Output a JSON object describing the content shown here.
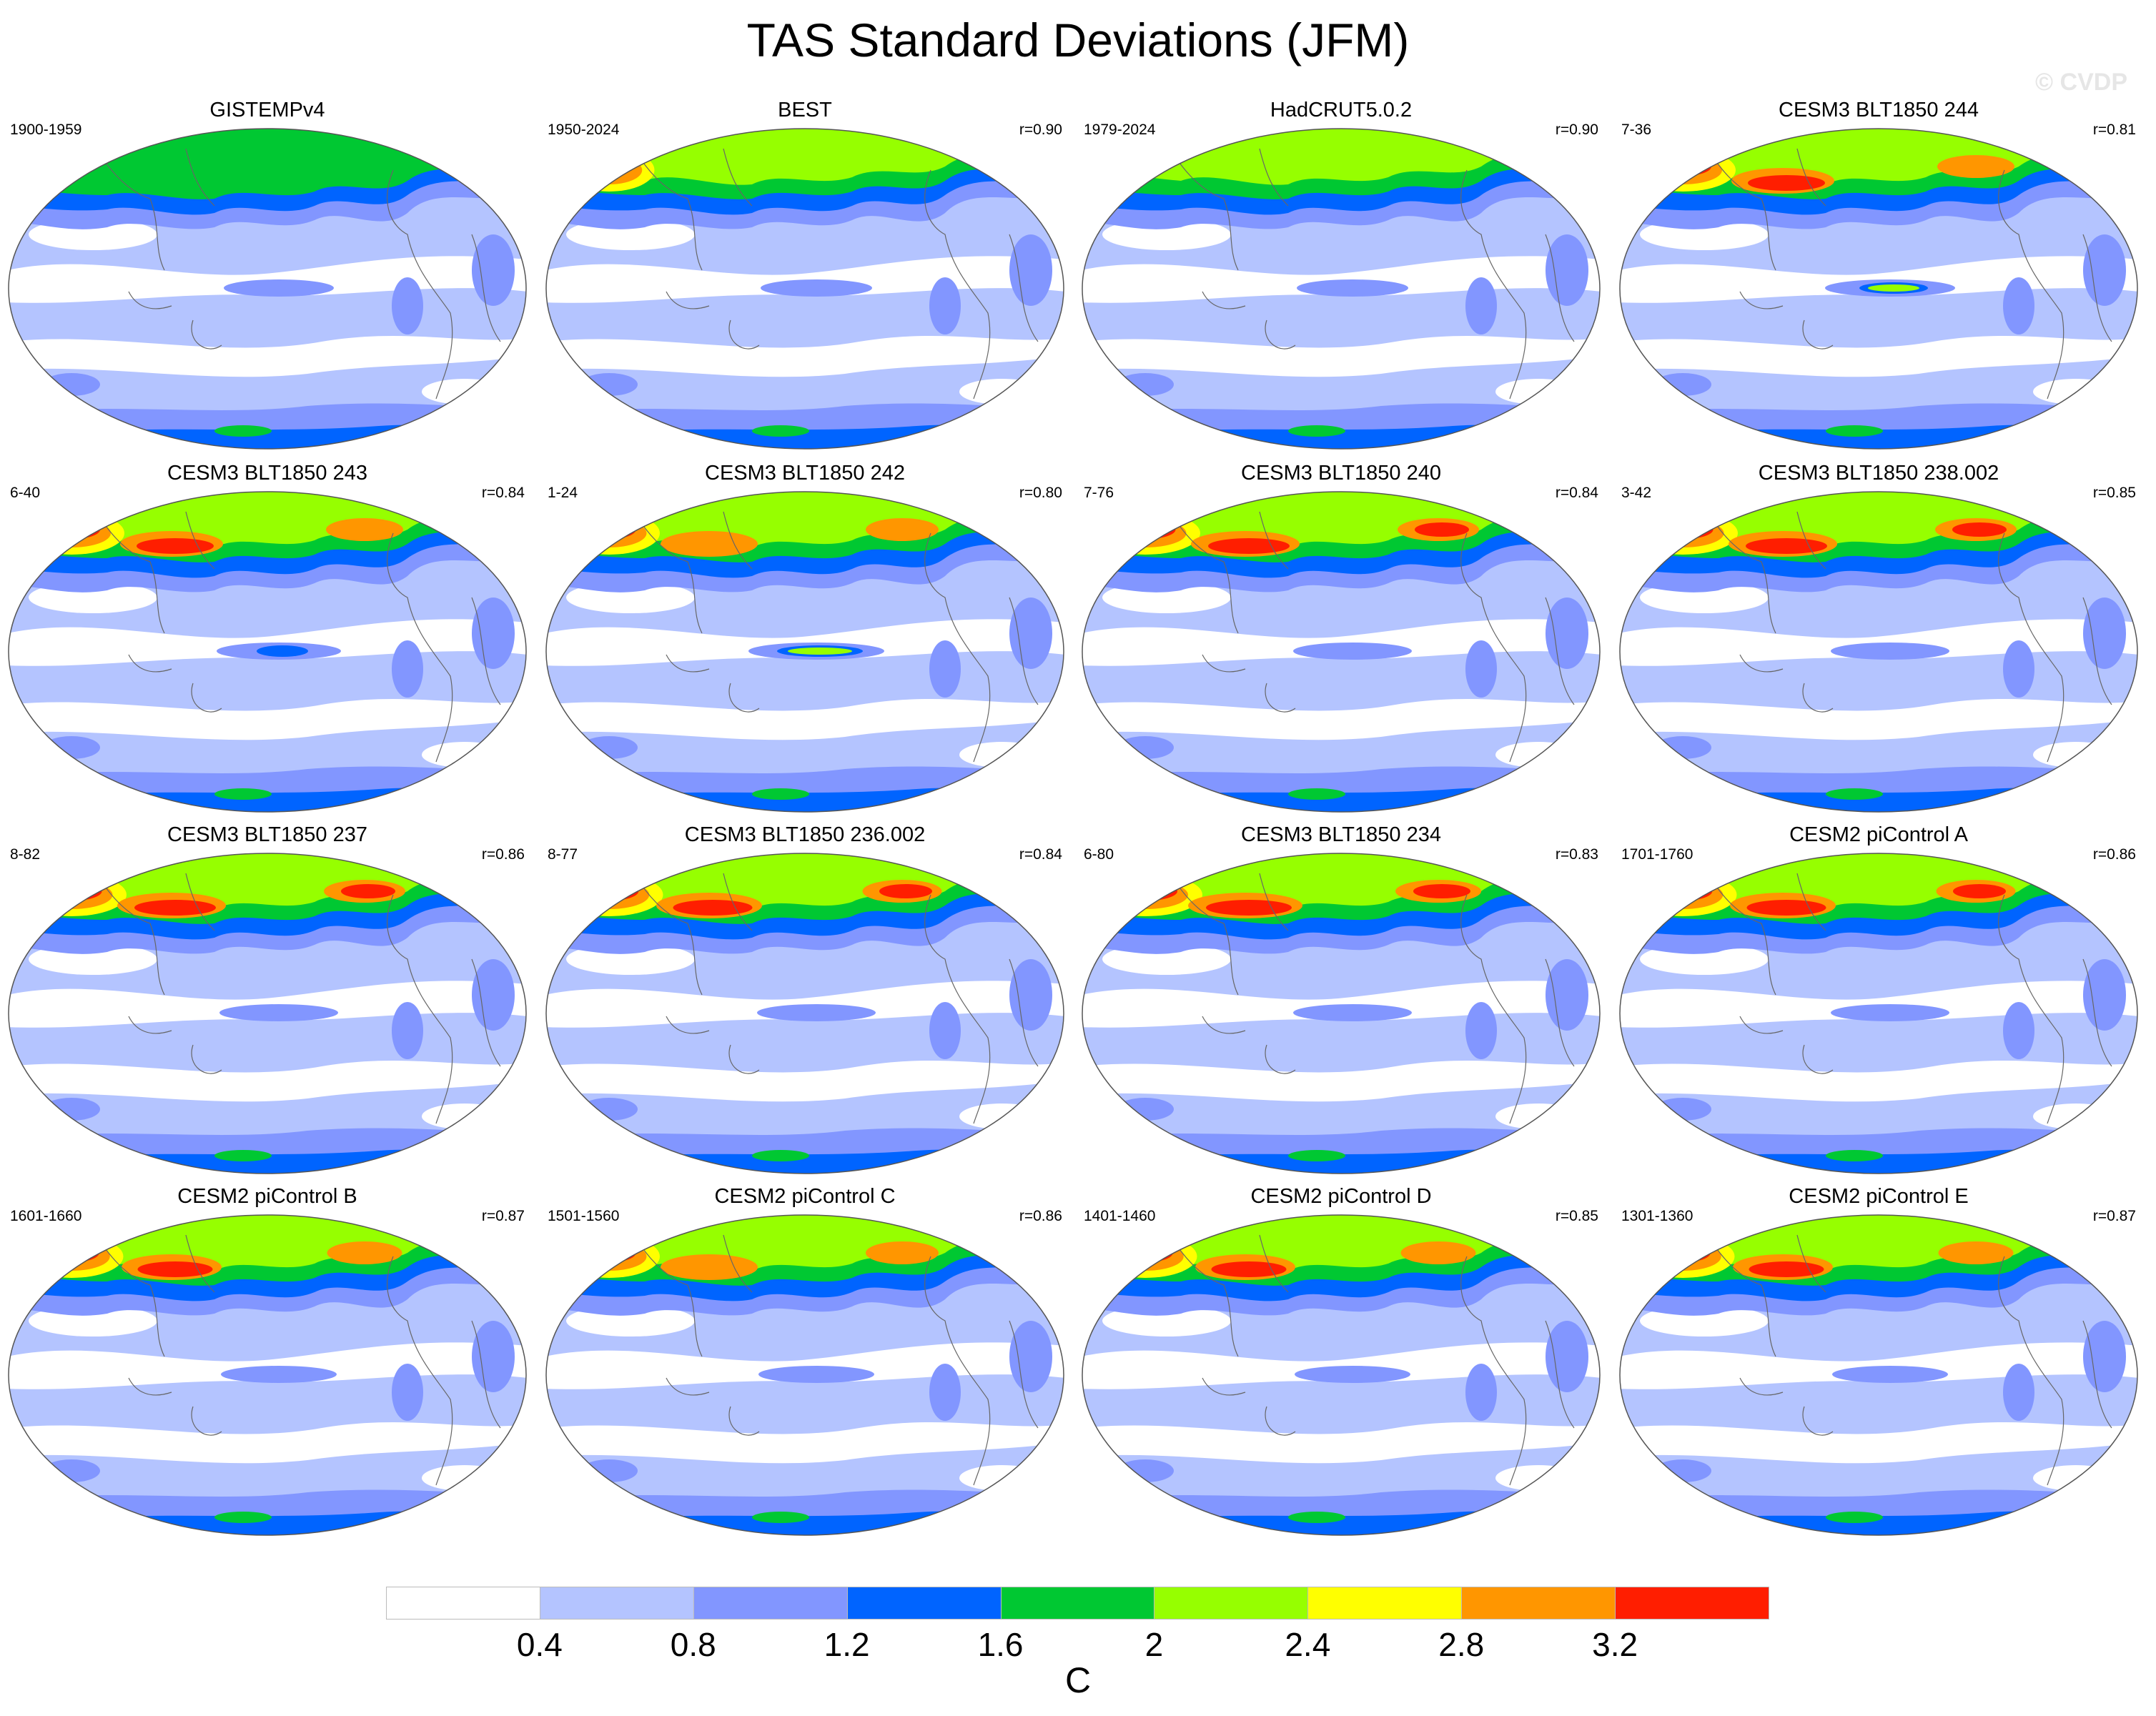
{
  "figure": {
    "title": "TAS Standard Deviations (JFM)",
    "watermark": "© CVDP"
  },
  "panels": [
    {
      "title": "GISTEMPv4",
      "left": "1900-1959",
      "right": "",
      "intensity": 0.25,
      "enso": 0.1
    },
    {
      "title": "BEST",
      "left": "1950-2024",
      "right": "r=0.90",
      "intensity": 0.45,
      "enso": 0.15
    },
    {
      "title": "HadCRUT5.0.2",
      "left": "1979-2024",
      "right": "r=0.90",
      "intensity": 0.35,
      "enso": 0.15
    },
    {
      "title": "CESM3 BLT1850 244",
      "left": "7-36",
      "right": "r=0.81",
      "intensity": 0.8,
      "enso": 0.8
    },
    {
      "title": "CESM3 BLT1850 243",
      "left": "6-40",
      "right": "r=0.84",
      "intensity": 0.8,
      "enso": 0.6
    },
    {
      "title": "CESM3 BLT1850 242",
      "left": "1-24",
      "right": "r=0.80",
      "intensity": 0.7,
      "enso": 1.0
    },
    {
      "title": "CESM3 BLT1850 240",
      "left": "7-76",
      "right": "r=0.84",
      "intensity": 0.9,
      "enso": 0.4
    },
    {
      "title": "CESM3 BLT1850 238.002",
      "left": "3-42",
      "right": "r=0.85",
      "intensity": 0.9,
      "enso": 0.4
    },
    {
      "title": "CESM3 BLT1850 237",
      "left": "8-82",
      "right": "r=0.86",
      "intensity": 0.9,
      "enso": 0.4
    },
    {
      "title": "CESM3 BLT1850 236.002",
      "left": "8-77",
      "right": "r=0.84",
      "intensity": 0.85,
      "enso": 0.4
    },
    {
      "title": "CESM3 BLT1850 234",
      "left": "6-80",
      "right": "r=0.83",
      "intensity": 1.0,
      "enso": 0.4
    },
    {
      "title": "CESM2 piControl A",
      "left": "1701-1760",
      "right": "r=0.86",
      "intensity": 0.85,
      "enso": 0.4
    },
    {
      "title": "CESM2 piControl B",
      "left": "1601-1660",
      "right": "r=0.87",
      "intensity": 0.75,
      "enso": 0.3
    },
    {
      "title": "CESM2 piControl C",
      "left": "1501-1560",
      "right": "r=0.86",
      "intensity": 0.7,
      "enso": 0.3
    },
    {
      "title": "CESM2 piControl D",
      "left": "1401-1460",
      "right": "r=0.85",
      "intensity": 0.75,
      "enso": 0.3
    },
    {
      "title": "CESM2 piControl E",
      "left": "1301-1360",
      "right": "r=0.87",
      "intensity": 0.75,
      "enso": 0.3
    }
  ],
  "colorbar": {
    "labels": [
      "0.4",
      "0.8",
      "1.2",
      "1.6",
      "2",
      "2.4",
      "2.8",
      "3.2"
    ],
    "colors": [
      "#ffffff",
      "#b4c4ff",
      "#8296ff",
      "#0064ff",
      "#00c832",
      "#96ff00",
      "#ffff00",
      "#ff9600",
      "#ff1e00"
    ],
    "unit": "C"
  }
}
